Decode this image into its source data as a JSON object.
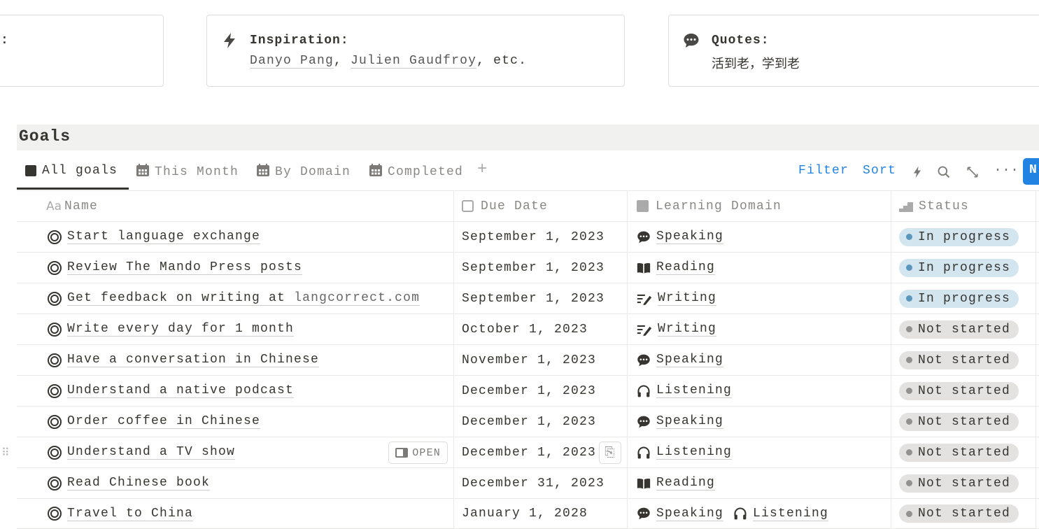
{
  "cards": [
    {
      "title": ":"
    },
    {
      "title": "Inspiration:",
      "icon": "lightning-icon",
      "links": [
        "Danyo Pang",
        "Julien Gaudfroy"
      ],
      "suffix": ", etc.",
      "sep": ", "
    },
    {
      "title": "Quotes:",
      "icon": "speech-bubble-icon",
      "value": "活到老，学到老"
    }
  ],
  "database": {
    "title": "Goals",
    "tabs": [
      {
        "label": "All goals",
        "icon": "table-icon"
      },
      {
        "label": "This Month",
        "icon": "calendar-icon"
      },
      {
        "label": "By Domain",
        "icon": "calendar-icon"
      },
      {
        "label": "Completed",
        "icon": "calendar-icon"
      }
    ],
    "actions": {
      "filter": "Filter",
      "sort": "Sort",
      "new": "N"
    },
    "columns": {
      "name": "Name",
      "name_icon": "Aa",
      "due": "Due Date",
      "domain": "Learning Domain",
      "status": "Status"
    },
    "open_label": "OPEN",
    "status_colors": {
      "In progress": {
        "bg": "#d3e5ef",
        "dot": "#5b97bd"
      },
      "Not started": {
        "bg": "#e3e2e0",
        "dot": "#91918e"
      }
    },
    "rows": [
      {
        "name": "Start language exchange",
        "due": "September 1, 2023",
        "domains": [
          {
            "label": "Speaking",
            "icon": "speech-bubble-icon"
          }
        ],
        "status": "In progress"
      },
      {
        "name": "Review The Mando Press posts",
        "due": "September 1, 2023",
        "domains": [
          {
            "label": "Reading",
            "icon": "book-icon"
          }
        ],
        "status": "In progress"
      },
      {
        "name": "Get feedback on writing at ",
        "link": "langcorrect.com",
        "due": "September 1, 2023",
        "domains": [
          {
            "label": "Writing",
            "icon": "pencil-lines-icon"
          }
        ],
        "status": "In progress"
      },
      {
        "name": "Write every day for 1 month",
        "due": "October 1, 2023",
        "domains": [
          {
            "label": "Writing",
            "icon": "pencil-lines-icon"
          }
        ],
        "status": "Not started"
      },
      {
        "name": "Have a conversation in Chinese",
        "due": "November 1, 2023",
        "domains": [
          {
            "label": "Speaking",
            "icon": "speech-bubble-icon"
          }
        ],
        "status": "Not started"
      },
      {
        "name": "Understand a native podcast",
        "due": "December 1, 2023",
        "domains": [
          {
            "label": "Listening",
            "icon": "headphones-icon"
          }
        ],
        "status": "Not started"
      },
      {
        "name": "Order coffee in Chinese",
        "due": "December 1, 2023",
        "domains": [
          {
            "label": "Speaking",
            "icon": "speech-bubble-icon"
          }
        ],
        "status": "Not started"
      },
      {
        "name": "Understand a TV show",
        "due": "December 1, 2023",
        "domains": [
          {
            "label": "Listening",
            "icon": "headphones-icon"
          }
        ],
        "status": "Not started",
        "hover": true
      },
      {
        "name": "Read Chinese book",
        "due": "December 31, 2023",
        "domains": [
          {
            "label": "Reading",
            "icon": "book-icon"
          }
        ],
        "status": "Not started"
      },
      {
        "name": "Travel to China",
        "due": "January 1, 2028",
        "domains": [
          {
            "label": "Speaking",
            "icon": "speech-bubble-icon"
          },
          {
            "label": "Listening",
            "icon": "headphones-icon"
          }
        ],
        "status": "Not started"
      }
    ]
  }
}
